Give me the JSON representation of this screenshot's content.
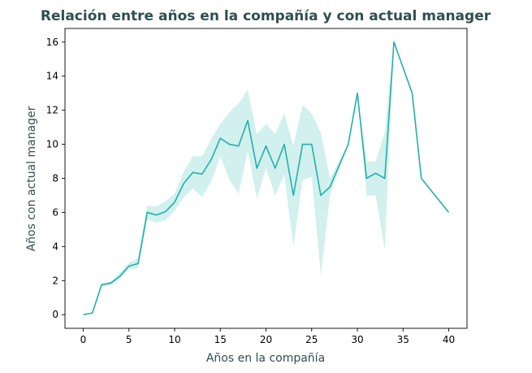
{
  "chart_data": {
    "type": "line",
    "title": "Relación entre años en la compañía y con actual manager",
    "xlabel": "Años en la compañía",
    "ylabel": "Años con actual manager",
    "xlim": [
      -2,
      42
    ],
    "ylim": [
      -0.8,
      16.8
    ],
    "xticks": [
      0,
      5,
      10,
      15,
      20,
      25,
      30,
      35,
      40
    ],
    "yticks": [
      0,
      2,
      4,
      6,
      8,
      10,
      12,
      14,
      16
    ],
    "grid": false,
    "legend": "none",
    "colors": {
      "line": "#20b2aa",
      "band": "#20b2aa",
      "title": "#2f4f4f",
      "labels": "#2f4f4f"
    },
    "series": [
      {
        "x": [
          0,
          1,
          2,
          3,
          4,
          5,
          6,
          7,
          8,
          9,
          10,
          11,
          12,
          13,
          14,
          15,
          16,
          17,
          18,
          19,
          20,
          21,
          22,
          23,
          24,
          25,
          26,
          27,
          29,
          30,
          31,
          32,
          33,
          34,
          36,
          37,
          40
        ],
        "y": [
          0,
          0.1,
          1.75,
          1.85,
          2.25,
          2.85,
          3.0,
          6.0,
          5.85,
          6.05,
          6.6,
          7.7,
          8.35,
          8.25,
          9.1,
          10.35,
          10.0,
          9.9,
          11.4,
          8.6,
          9.9,
          8.6,
          10.0,
          7.0,
          10.0,
          10.0,
          7.0,
          7.5,
          10.0,
          13.0,
          8.0,
          8.3,
          8.0,
          16.0,
          13.0,
          8.0,
          6.0
        ],
        "ci_lower": [
          0,
          0.1,
          1.65,
          1.75,
          2.1,
          2.7,
          2.7,
          5.6,
          5.4,
          5.55,
          6.1,
          6.9,
          7.4,
          6.9,
          7.8,
          9.3,
          7.9,
          7.1,
          9.6,
          6.8,
          8.6,
          7.0,
          8.2,
          4.0,
          7.9,
          8.1,
          2.3,
          7.0,
          10.0,
          13.0,
          7.0,
          7.0,
          3.8,
          16.0,
          13.0,
          8.0,
          6.0
        ],
        "ci_upper": [
          0,
          0.1,
          1.85,
          1.95,
          2.45,
          3.05,
          3.3,
          6.4,
          6.35,
          6.65,
          7.1,
          8.4,
          9.3,
          9.3,
          10.3,
          11.2,
          11.9,
          12.4,
          13.2,
          10.6,
          11.2,
          10.6,
          11.8,
          9.9,
          12.3,
          11.8,
          10.7,
          8.0,
          10.0,
          13.0,
          9.0,
          9.0,
          10.7,
          16.0,
          13.0,
          8.0,
          6.0
        ]
      }
    ]
  }
}
